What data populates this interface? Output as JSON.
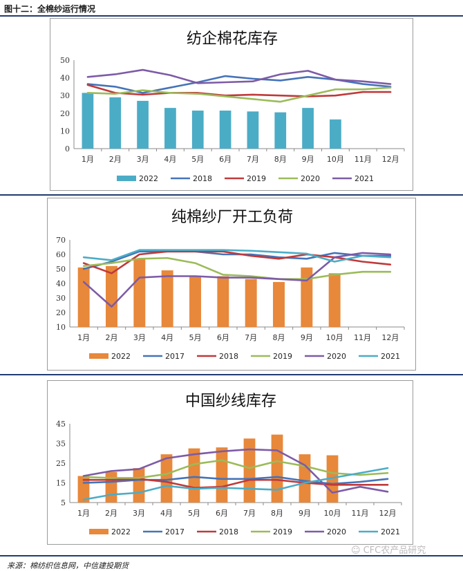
{
  "figure_title": "图十二：全棉纱运行情况",
  "source": "来源：棉纺织信息网，中信建投期货",
  "watermark": "CFC农产品研究",
  "colors": {
    "bar_chart1": "#4bacc6",
    "bar_orange": "#e8883a",
    "s2017": "#4573b8",
    "s2018_top": "#4573b8",
    "s2018": "#c0393a",
    "s2019_top": "#c0393a",
    "s2019": "#9bbb59",
    "s2020_top": "#9bbb59",
    "s2020": "#7d5ba6",
    "s2021_top": "#7d5ba6",
    "s2021": "#4bacc6",
    "rule": "#1f3b70"
  },
  "chart_data": [
    {
      "type": "bar+line",
      "title": "纺企棉花库存",
      "categories": [
        "1月",
        "2月",
        "3月",
        "4月",
        "5月",
        "6月",
        "7月",
        "8月",
        "9月",
        "10月",
        "11月",
        "12月"
      ],
      "ylim": [
        0,
        50
      ],
      "yticks": [
        0,
        10,
        20,
        30,
        40,
        50
      ],
      "grid": false,
      "legend_position": "bottom",
      "bar_series": {
        "name": "2022",
        "values": [
          31.5,
          29,
          27,
          23,
          21.5,
          21.5,
          21,
          20.5,
          23,
          16.5,
          null,
          null
        ]
      },
      "series": [
        {
          "name": "2018",
          "values": [
            36.5,
            35,
            31.5,
            34.5,
            37.5,
            41,
            39.5,
            38.5,
            40.5,
            39,
            36.5,
            35
          ]
        },
        {
          "name": "2019",
          "values": [
            36,
            31.5,
            30.5,
            31.5,
            31.5,
            30,
            30.5,
            30,
            29.5,
            30,
            32,
            32
          ]
        },
        {
          "name": "2020",
          "values": [
            31.5,
            31,
            33,
            31.5,
            31,
            29.5,
            28,
            26.5,
            30,
            33.5,
            33.5,
            34.5
          ]
        },
        {
          "name": "2021",
          "values": [
            40.5,
            42,
            44.5,
            41.5,
            37,
            37.5,
            38,
            42,
            44,
            39,
            38,
            36.5
          ]
        }
      ]
    },
    {
      "type": "bar+line",
      "title": "纯棉纱厂开工负荷",
      "categories": [
        "1月",
        "2月",
        "3月",
        "4月",
        "5月",
        "6月",
        "7月",
        "8月",
        "9月",
        "10月",
        "11月",
        "12月"
      ],
      "ylim": [
        10,
        70
      ],
      "yticks": [
        10,
        20,
        30,
        40,
        50,
        60,
        70
      ],
      "grid": false,
      "legend_position": "bottom",
      "bar_series": {
        "name": "2022",
        "values": [
          51,
          52,
          57,
          49,
          45,
          45,
          43,
          41,
          51,
          47,
          null,
          null
        ]
      },
      "series": [
        {
          "name": "2017",
          "values": [
            50,
            55,
            62,
            62,
            62,
            60,
            60,
            58,
            57,
            61,
            59,
            59
          ]
        },
        {
          "name": "2018",
          "values": [
            54,
            47,
            60,
            62,
            62,
            62,
            59,
            57,
            60,
            58,
            55,
            53
          ]
        },
        {
          "name": "2019",
          "values": [
            52,
            54,
            57,
            57.5,
            54,
            46,
            45,
            43,
            43,
            46,
            48,
            48
          ]
        },
        {
          "name": "2020",
          "values": [
            41,
            24,
            44,
            45,
            45,
            44,
            44,
            43,
            42,
            58,
            61,
            60
          ]
        },
        {
          "name": "2021",
          "values": [
            58,
            56,
            63,
            63,
            63,
            63,
            62.5,
            61.5,
            60.5,
            55,
            59,
            58
          ]
        }
      ]
    },
    {
      "type": "bar+line",
      "title": "中国纱线库存",
      "categories": [
        "1月",
        "2月",
        "3月",
        "4月",
        "5月",
        "6月",
        "7月",
        "8月",
        "9月",
        "10月",
        "11月",
        "12月"
      ],
      "ylim": [
        5,
        45
      ],
      "yticks": [
        5,
        15,
        25,
        35,
        45
      ],
      "grid": false,
      "legend_position": "bottom",
      "bar_series": {
        "name": "2022",
        "values": [
          18.5,
          20.5,
          22.5,
          29.5,
          32.5,
          33,
          37.5,
          39.5,
          29.5,
          29,
          null,
          null
        ]
      },
      "series": [
        {
          "name": "2017",
          "values": [
            15,
            15.5,
            16.5,
            16.5,
            18,
            17,
            17,
            18,
            16,
            14.5,
            15.5,
            17
          ]
        },
        {
          "name": "2018",
          "values": [
            16.5,
            16.5,
            17,
            15.5,
            12.5,
            13,
            16.5,
            16.5,
            15,
            14,
            14,
            14
          ]
        },
        {
          "name": "2019",
          "values": [
            18,
            17.5,
            17.5,
            19.5,
            24.5,
            26.5,
            22.5,
            26,
            23.5,
            20,
            19,
            20
          ]
        },
        {
          "name": "2020",
          "values": [
            18.5,
            21,
            22,
            27.5,
            29.5,
            31,
            32,
            31.5,
            24,
            10,
            13,
            10.5
          ]
        },
        {
          "name": "2021",
          "values": [
            6.5,
            9,
            10,
            13.5,
            12,
            12.5,
            12,
            11.5,
            15,
            17.5,
            20,
            22.5
          ]
        }
      ]
    }
  ]
}
